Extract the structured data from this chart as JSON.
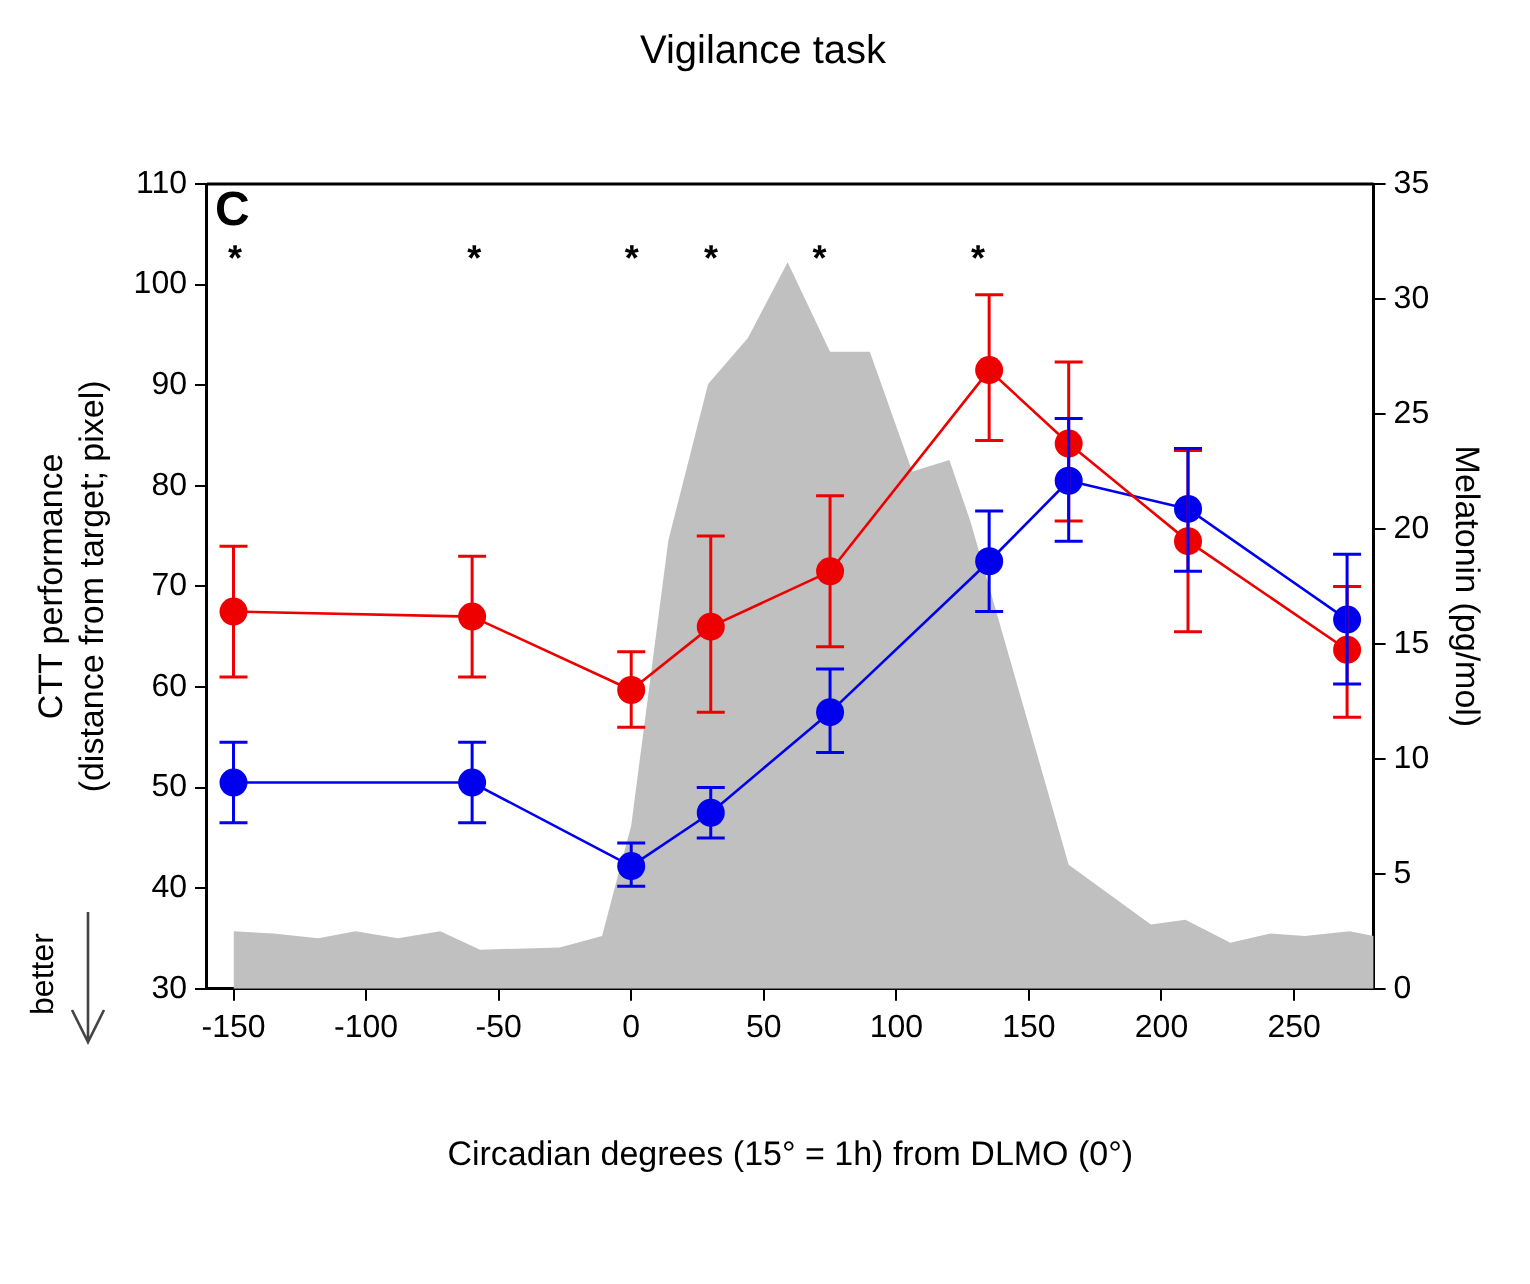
{
  "chart_data": {
    "type": "line",
    "title": "Vigilance task",
    "xlabel": "Circadian degrees (15° = 1h) from DLMO (0°)",
    "ylabel": "CTT performance\n(distance from target; pixel)",
    "y2label": "Melatonin (pg/mol)",
    "x": [
      -150,
      -60,
      0,
      30,
      75,
      135,
      165,
      210,
      270
    ],
    "series": [
      {
        "type": "area",
        "axis": "y2",
        "color": "#c0c0c0",
        "marker": "none",
        "x": [
          -150,
          -135,
          -118,
          -104,
          -88,
          -72,
          -57,
          -27,
          -11,
          0,
          14,
          29,
          44,
          54,
          59,
          75,
          90,
          106,
          120,
          128,
          165,
          196,
          209,
          226,
          241,
          254,
          271,
          280
        ],
        "values": [
          2.5,
          2.4,
          2.2,
          2.5,
          2.2,
          2.5,
          1.7,
          1.8,
          2.3,
          7.1,
          19.5,
          26.3,
          28.3,
          30.5,
          31.6,
          27.7,
          27.7,
          22.5,
          23.0,
          20.3,
          5.4,
          2.8,
          3.0,
          2.0,
          2.4,
          2.3,
          2.5,
          2.3
        ]
      },
      {
        "color": "#ee0000",
        "values": [
          67.5,
          67,
          59.7,
          66,
          71.5,
          91.5,
          84.2,
          74.5,
          63.7
        ],
        "errors": [
          [
            61,
            74
          ],
          [
            61,
            73
          ],
          [
            56,
            63.5
          ],
          [
            57.5,
            75
          ],
          [
            64,
            79
          ],
          [
            84.5,
            99
          ],
          [
            76.5,
            92.3
          ],
          [
            65.5,
            83.5
          ],
          [
            57,
            70
          ]
        ]
      },
      {
        "color": "#0000ee",
        "values": [
          50.5,
          50.5,
          42.2,
          47.5,
          57.5,
          72.5,
          80.5,
          77.7,
          66.7
        ],
        "errors": [
          [
            46.5,
            54.5
          ],
          [
            46.5,
            54.5
          ],
          [
            40.2,
            44.5
          ],
          [
            45,
            50
          ],
          [
            53.5,
            61.8
          ],
          [
            67.5,
            77.5
          ],
          [
            74.5,
            86.7
          ],
          [
            71.5,
            83.7
          ],
          [
            60.3,
            73.2
          ]
        ]
      }
    ],
    "xlim": [
      -160,
      280
    ],
    "xticks": [
      -150,
      -100,
      -50,
      0,
      50,
      100,
      150,
      200,
      250
    ],
    "ylim": [
      30,
      110
    ],
    "yticks": [
      30,
      40,
      50,
      60,
      70,
      80,
      90,
      100,
      110
    ],
    "y2lim": [
      0,
      35
    ],
    "y2ticks": [
      0,
      5,
      10,
      15,
      20,
      25,
      30,
      35
    ],
    "marker": "circle",
    "line_style": "solid",
    "grid": false,
    "legend": false,
    "annotations": [
      "C",
      "better",
      "*",
      "*",
      "*",
      "*",
      "*",
      "*"
    ]
  }
}
